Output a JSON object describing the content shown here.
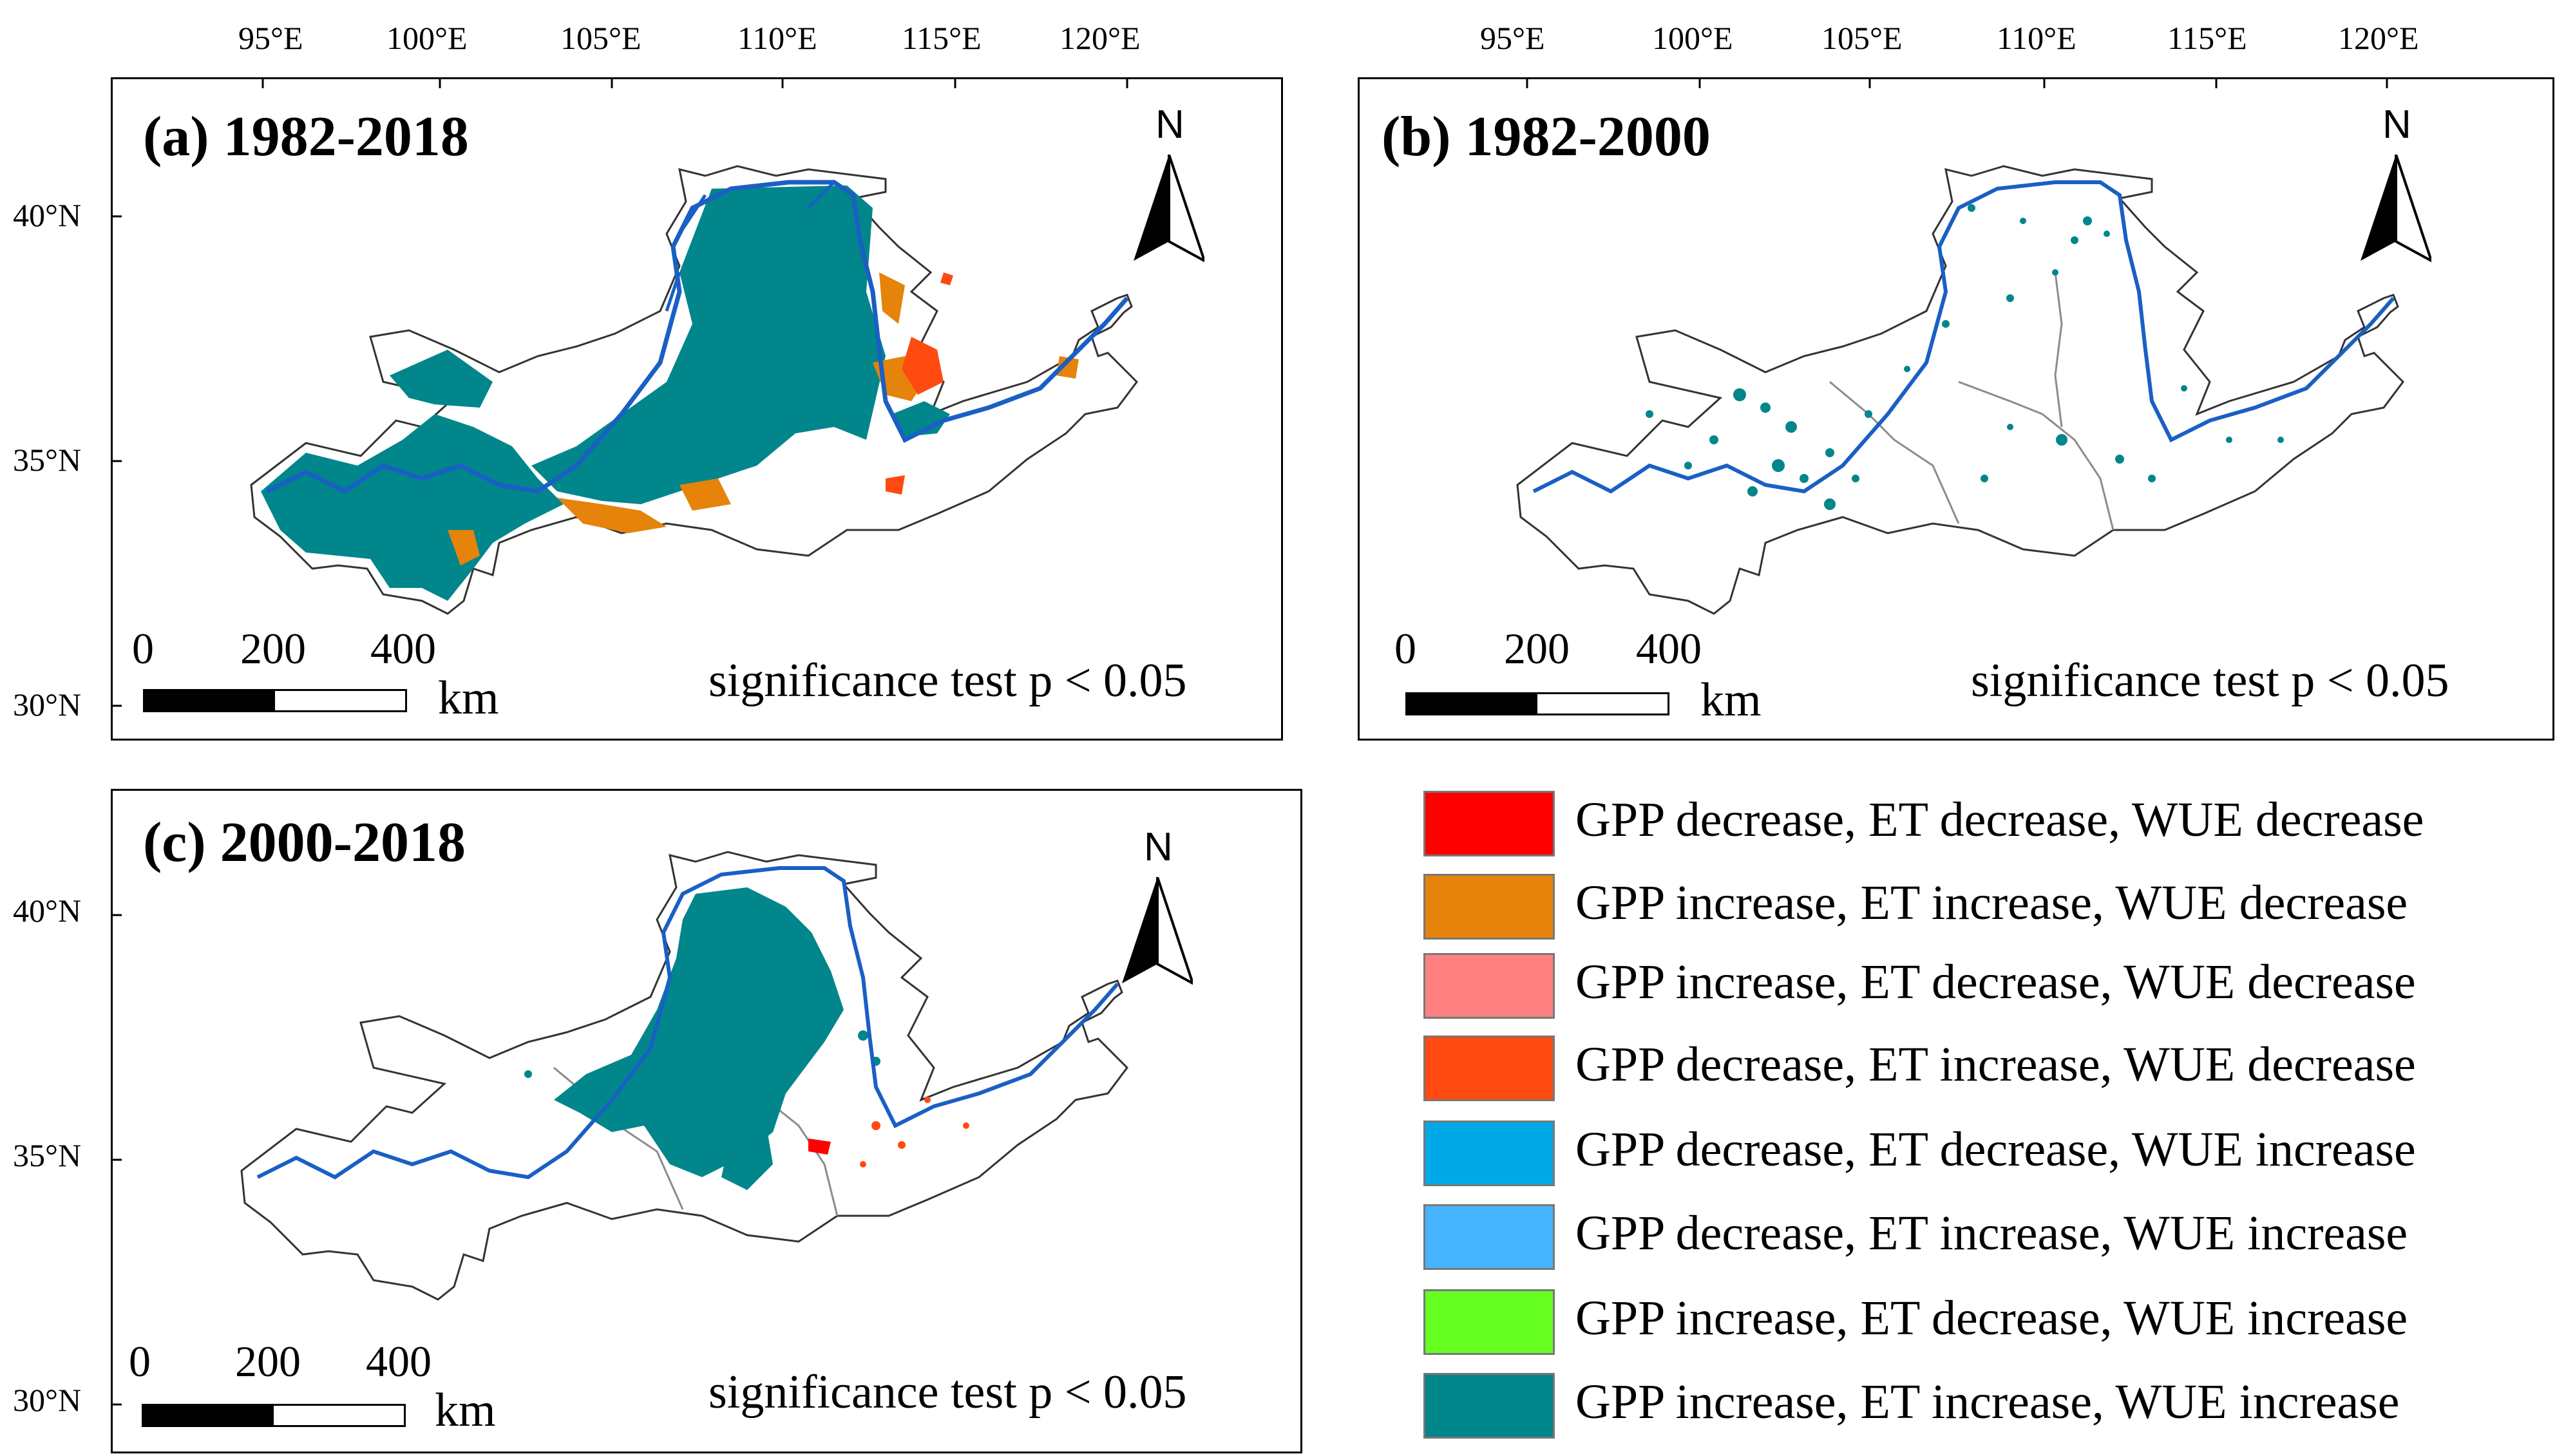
{
  "lon_ticks": [
    "95°E",
    "100°E",
    "105°E",
    "110°E",
    "115°E",
    "120°E"
  ],
  "lat_ticks": [
    "40°N",
    "35°N",
    "30°N"
  ],
  "panels": [
    {
      "title": "(a) 1982-2018",
      "significance": "significance test p < 0.05"
    },
    {
      "title": "(b) 1982-2000",
      "significance": "significance test p < 0.05"
    },
    {
      "title": "(c) 2000-2018",
      "significance": "significance test p < 0.05"
    }
  ],
  "north": "N",
  "scale_bar": {
    "labels": [
      "0",
      "200",
      "400"
    ],
    "unit": "km"
  },
  "legend": [
    {
      "label": "GPP decrease, ET decrease, WUE decrease",
      "color": "#ff0000"
    },
    {
      "label": "GPP increase, ET increase, WUE decrease",
      "color": "#e6830a"
    },
    {
      "label": "GPP increase, ET decrease, WUE decrease",
      "color": "#ff8080"
    },
    {
      "label": "GPP decrease, ET increase, WUE decrease",
      "color": "#ff4a10"
    },
    {
      "label": "GPP decrease, ET decrease, WUE increase",
      "color": "#00a8e8"
    },
    {
      "label": "GPP decrease, ET increase, WUE increase",
      "color": "#45b5ff"
    },
    {
      "label": "GPP increase, ET decrease, WUE increase",
      "color": "#66ff22"
    },
    {
      "label": "GPP increase, ET increase, WUE increase",
      "color": "#00868b"
    }
  ],
  "colors": {
    "river": "#1a5fc4",
    "boundary": "#444444",
    "subbasin": "#8c8c8c",
    "dominant": "#00868b"
  }
}
